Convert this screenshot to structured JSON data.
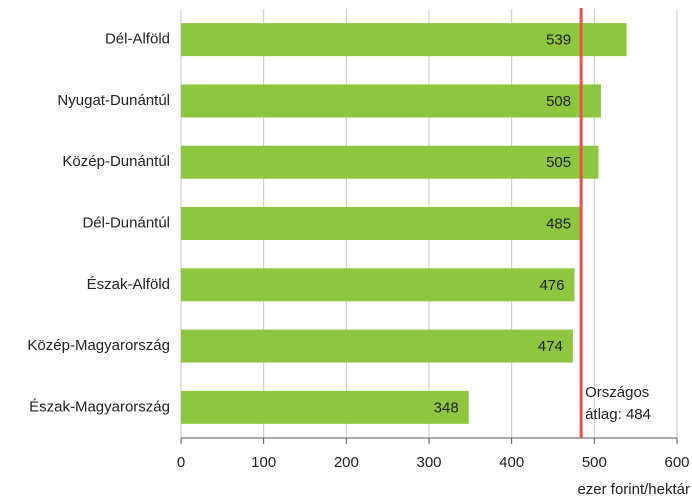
{
  "chart_data": {
    "type": "bar",
    "orientation": "horizontal",
    "categories": [
      "Dél-Alföld",
      "Nyugat-Dunántúl",
      "Közép-Dunántúl",
      "Dél-Dunántúl",
      "Észak-Alföld",
      "Közép-Magyarország",
      "Észak-Magyarország"
    ],
    "values": [
      539,
      508,
      505,
      485,
      476,
      474,
      348
    ],
    "color": "#8dc63f",
    "xlim": [
      0,
      600
    ],
    "xticks": [
      0,
      100,
      200,
      300,
      400,
      500,
      600
    ],
    "grid": true,
    "xlabel": "ezer forint/hektár",
    "reference_line": {
      "value": 484,
      "color": "#e8514a",
      "annotation": [
        "Országos",
        "átlag: 484"
      ]
    }
  }
}
